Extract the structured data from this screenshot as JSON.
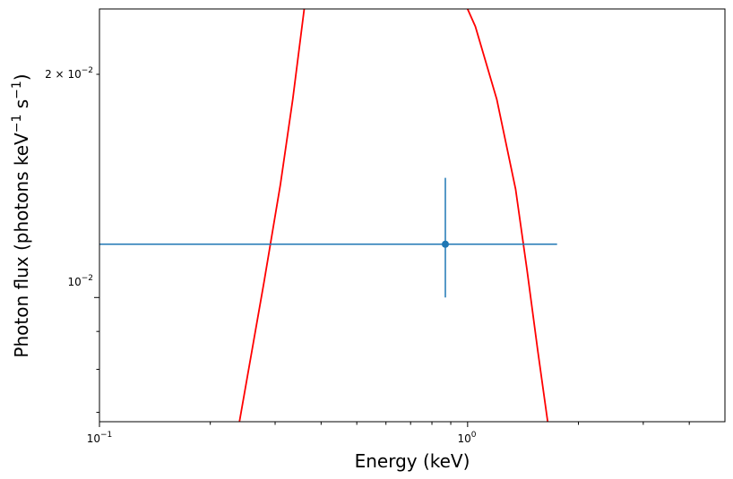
{
  "chart_data": {
    "type": "scatter",
    "xlabel": "Energy (keV)",
    "ylabel_main": "Photon flux (photons keV",
    "ylabel_sup1": "−1",
    "ylabel_mid": " s",
    "ylabel_sup2": "−1",
    "ylabel_end": ")",
    "x_scale": "log",
    "y_scale": "log",
    "xlim": [
      0.1,
      5.0
    ],
    "ylim": [
      0.0068,
      0.0245
    ],
    "x_tick_labels": [
      {
        "base": "10",
        "exp": "−1",
        "value": 0.1
      },
      {
        "base": "10",
        "exp": "0",
        "value": 1.0
      }
    ],
    "y_tick_labels": [
      {
        "coef": "",
        "base": "10",
        "exp": "−2",
        "value": 0.01
      },
      {
        "coef": "2 × ",
        "base": "10",
        "exp": "−2",
        "value": 0.02
      }
    ],
    "grid": false,
    "legend": "none",
    "data_point": {
      "x": 0.87,
      "y": 0.0118,
      "x_err": [
        0.1,
        1.75
      ],
      "y_err": [
        0.01,
        0.0145
      ]
    },
    "model_curve": {
      "x": [
        0.24,
        0.28,
        0.31,
        0.335,
        0.36,
        1.0,
        1.05,
        1.2,
        1.35,
        1.45,
        1.55,
        1.65
      ],
      "y": [
        0.0068,
        0.0105,
        0.0142,
        0.0185,
        0.0245,
        0.0245,
        0.0232,
        0.0185,
        0.014,
        0.0109,
        0.0085,
        0.0068
      ]
    },
    "colors": {
      "data": "#1f77b4",
      "model": "#ff0000",
      "axes": "#000000"
    }
  }
}
